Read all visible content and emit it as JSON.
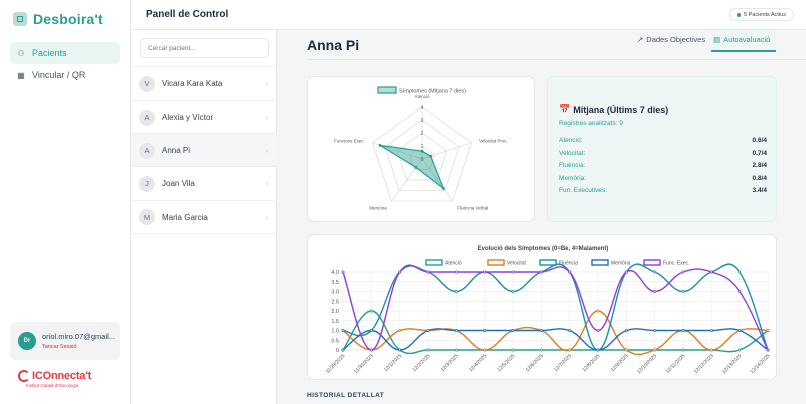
{
  "brand": {
    "name": "Desboira't"
  },
  "nav": {
    "items": [
      {
        "label": "Pacients",
        "icon": "users-icon"
      },
      {
        "label": "Vincular / QR",
        "icon": "qr-icon"
      }
    ]
  },
  "user": {
    "initials": "Dr",
    "email": "oriol.miro.07@gmail...",
    "logout": "Tancar Sessió"
  },
  "partner": {
    "name": "ICOnnecta't",
    "subtitle": "Institut Català d'Oncologia"
  },
  "header": {
    "title": "Panell de Control",
    "badge": "5 Pacients Actius"
  },
  "search": {
    "placeholder": "Cercar pacient..."
  },
  "patients": [
    {
      "initial": "V",
      "name": "Vicara Kara Kata"
    },
    {
      "initial": "A",
      "name": "Alexia y Víctor"
    },
    {
      "initial": "A",
      "name": "Anna Pi"
    },
    {
      "initial": "J",
      "name": "Joan Vila"
    },
    {
      "initial": "M",
      "name": "Maria Garcia"
    }
  ],
  "selected_patient": {
    "name": "Anna Pi"
  },
  "tabs": [
    {
      "label": "Dades Objectives",
      "icon": "chart-icon"
    },
    {
      "label": "Autoavaluació",
      "icon": "clipboard-icon"
    }
  ],
  "stats": {
    "title": "Mitjana (Últims 7 dies)",
    "registers": "Registres analitzats: 9",
    "rows": [
      {
        "label": "Atenció:",
        "value": "0.6/4"
      },
      {
        "label": "Velocitat:",
        "value": "0.7/4"
      },
      {
        "label": "Fluència:",
        "value": "2.8/4"
      },
      {
        "label": "Memòria:",
        "value": "0.8/4"
      },
      {
        "label": "Fun. Executives:",
        "value": "3.4/4"
      }
    ]
  },
  "history": {
    "title": "HISTORIAL DETALLAT"
  },
  "colors": {
    "accent": "#2a9d8f",
    "atencio": "#2a9d8f",
    "velocitat": "#e07b22",
    "fluencia": "#1e8fa6",
    "memoria": "#1f6fb5",
    "exec": "#8b3fd9"
  },
  "chart_data": [
    {
      "type": "radar",
      "legend": [
        "Símptomes (Mitjana 7 dies)"
      ],
      "axes": [
        "Atenció",
        "Velocitat Proc.",
        "Fluència Verbal",
        "Memòria",
        "Funcions Exec."
      ],
      "ticks": [
        "0",
        "1",
        "2",
        "3",
        "4"
      ],
      "range": [
        0,
        4
      ],
      "values": [
        0.6,
        0.7,
        2.8,
        0.8,
        3.4
      ]
    },
    {
      "type": "line",
      "title": "Evolució dels Símptomes (0=Be, 4=Malament)",
      "categories": [
        "11/29/2025",
        "11/30/2025",
        "12/1/2025",
        "12/2/2025",
        "12/3/2025",
        "12/4/2025",
        "12/5/2025",
        "12/6/2025",
        "12/7/2025",
        "12/8/2025",
        "12/9/2025",
        "12/10/2025",
        "12/11/2025",
        "12/12/2025",
        "12/13/2025",
        "12/14/2025"
      ],
      "yticks": [
        "0",
        "0.5",
        "1.0",
        "1.5",
        "2.0",
        "2.5",
        "3.0",
        "3.5",
        "4.0"
      ],
      "ylim": [
        0,
        4
      ],
      "series": [
        {
          "name": "Atenció",
          "values": [
            0,
            2,
            0,
            0,
            0,
            0,
            0,
            0,
            0,
            0,
            0,
            0,
            0,
            0,
            0,
            1
          ]
        },
        {
          "name": "Velocitat",
          "values": [
            1,
            0,
            1,
            1,
            1,
            0,
            1,
            1,
            0,
            2,
            0,
            0,
            1,
            0,
            1,
            1
          ]
        },
        {
          "name": "Fluència",
          "values": [
            1,
            1,
            4,
            4,
            3,
            4,
            3,
            4,
            4,
            0,
            4,
            4,
            3,
            4,
            4,
            0
          ]
        },
        {
          "name": "Memòria",
          "values": [
            0,
            1,
            0,
            1,
            1,
            1,
            1,
            1,
            1,
            0,
            1,
            1,
            1,
            1,
            1,
            0
          ]
        },
        {
          "name": "Func. Exec.",
          "values": [
            4,
            0,
            4,
            4,
            4,
            4,
            4,
            4,
            4,
            1,
            4,
            3,
            4,
            4,
            3,
            0
          ]
        }
      ]
    }
  ]
}
